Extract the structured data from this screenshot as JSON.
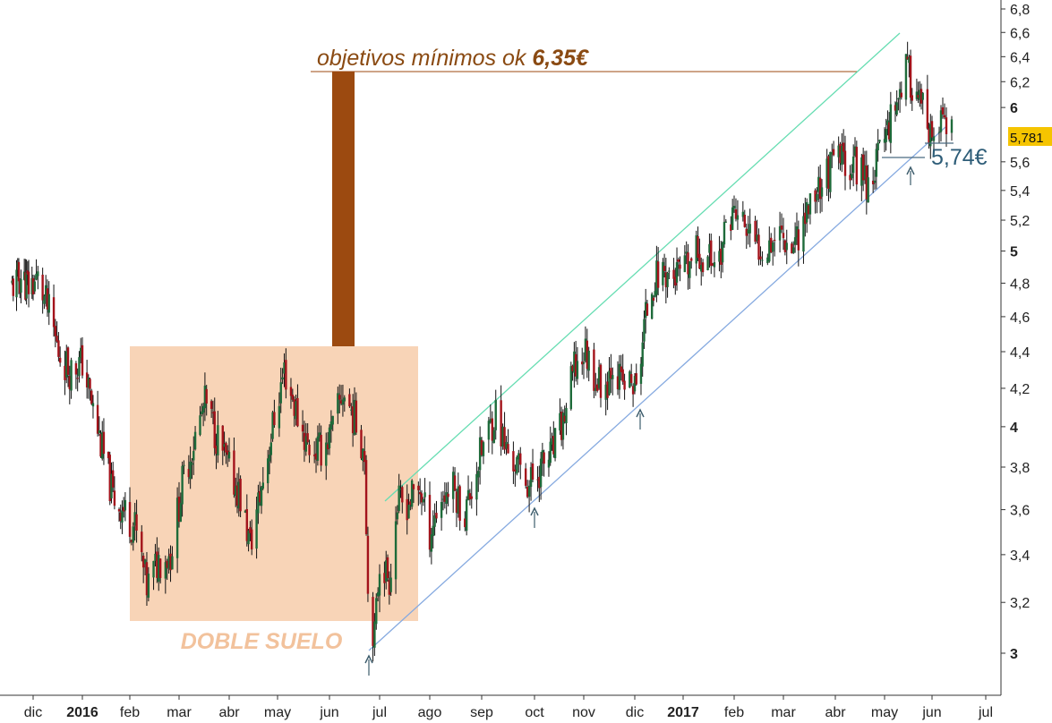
{
  "chart_data": {
    "type": "candlestick",
    "title": "",
    "xlabel": "",
    "ylabel": "",
    "ylim": [
      2.83,
      6.9
    ],
    "y_scale": "log",
    "grid": false,
    "y_ticks": [
      {
        "label": "6,8",
        "value": 6.8,
        "bold": false
      },
      {
        "label": "6,6",
        "value": 6.6,
        "bold": false
      },
      {
        "label": "6,4",
        "value": 6.4,
        "bold": false
      },
      {
        "label": "6,2",
        "value": 6.2,
        "bold": false
      },
      {
        "label": "6",
        "value": 6.0,
        "bold": true
      },
      {
        "label": "5,6",
        "value": 5.6,
        "bold": false
      },
      {
        "label": "5,4",
        "value": 5.4,
        "bold": false
      },
      {
        "label": "5,2",
        "value": 5.2,
        "bold": false
      },
      {
        "label": "5",
        "value": 5.0,
        "bold": true
      },
      {
        "label": "4,8",
        "value": 4.8,
        "bold": false
      },
      {
        "label": "4,6",
        "value": 4.6,
        "bold": false
      },
      {
        "label": "4,4",
        "value": 4.4,
        "bold": false
      },
      {
        "label": "4,2",
        "value": 4.2,
        "bold": false
      },
      {
        "label": "4",
        "value": 4.0,
        "bold": true
      },
      {
        "label": "3,8",
        "value": 3.8,
        "bold": false
      },
      {
        "label": "3,6",
        "value": 3.6,
        "bold": false
      },
      {
        "label": "3,4",
        "value": 3.4,
        "bold": false
      },
      {
        "label": "3,2",
        "value": 3.2,
        "bold": false
      },
      {
        "label": "3",
        "value": 3.0,
        "bold": true
      }
    ],
    "x_ticks": [
      {
        "label": "dic",
        "date": "2015-12-01",
        "bold": false
      },
      {
        "label": "2016",
        "date": "2016-01-01",
        "bold": true
      },
      {
        "label": "feb",
        "date": "2016-02-01",
        "bold": false
      },
      {
        "label": "mar",
        "date": "2016-03-01",
        "bold": false
      },
      {
        "label": "abr",
        "date": "2016-04-01",
        "bold": false
      },
      {
        "label": "may",
        "date": "2016-05-01",
        "bold": false
      },
      {
        "label": "jun",
        "date": "2016-06-01",
        "bold": false
      },
      {
        "label": "jul",
        "date": "2016-07-01",
        "bold": false
      },
      {
        "label": "ago",
        "date": "2016-08-01",
        "bold": false
      },
      {
        "label": "sep",
        "date": "2016-09-01",
        "bold": false
      },
      {
        "label": "oct",
        "date": "2016-10-01",
        "bold": false
      },
      {
        "label": "nov",
        "date": "2016-11-01",
        "bold": false
      },
      {
        "label": "dic",
        "date": "2016-12-01",
        "bold": false
      },
      {
        "label": "2017",
        "date": "2017-01-01",
        "bold": true
      },
      {
        "label": "feb",
        "date": "2017-02-01",
        "bold": false
      },
      {
        "label": "mar",
        "date": "2017-03-01",
        "bold": false
      },
      {
        "label": "abr",
        "date": "2017-04-01",
        "bold": false
      },
      {
        "label": "may",
        "date": "2017-05-01",
        "bold": false
      },
      {
        "label": "jun",
        "date": "2017-06-01",
        "bold": false
      },
      {
        "label": "jul",
        "date": "2017-07-01",
        "bold": false
      }
    ],
    "price_path": [
      [
        "2015-11-12",
        4.78
      ],
      [
        "2015-11-20",
        4.84
      ],
      [
        "2015-11-27",
        4.78
      ],
      [
        "2015-12-04",
        4.82
      ],
      [
        "2015-12-11",
        4.62
      ],
      [
        "2015-12-17",
        4.4
      ],
      [
        "2015-12-24",
        4.3
      ],
      [
        "2016-01-01",
        4.34
      ],
      [
        "2016-01-07",
        4.12
      ],
      [
        "2016-01-14",
        3.88
      ],
      [
        "2016-01-21",
        3.66
      ],
      [
        "2016-01-28",
        3.6
      ],
      [
        "2016-02-04",
        3.52
      ],
      [
        "2016-02-11",
        3.26
      ],
      [
        "2016-02-18",
        3.38
      ],
      [
        "2016-02-25",
        3.4
      ],
      [
        "2016-03-03",
        3.72
      ],
      [
        "2016-03-10",
        3.92
      ],
      [
        "2016-03-17",
        4.12
      ],
      [
        "2016-03-24",
        3.96
      ],
      [
        "2016-03-31",
        3.8
      ],
      [
        "2016-04-07",
        3.68
      ],
      [
        "2016-04-14",
        3.44
      ],
      [
        "2016-04-21",
        3.7
      ],
      [
        "2016-04-28",
        4.0
      ],
      [
        "2016-05-05",
        4.3
      ],
      [
        "2016-05-12",
        4.08
      ],
      [
        "2016-05-19",
        3.9
      ],
      [
        "2016-05-26",
        3.88
      ],
      [
        "2016-06-02",
        3.96
      ],
      [
        "2016-06-09",
        4.18
      ],
      [
        "2016-06-16",
        4.04
      ],
      [
        "2016-06-22",
        3.88
      ],
      [
        "2016-06-24",
        3.24
      ],
      [
        "2016-06-28",
        3.06
      ],
      [
        "2016-07-01",
        3.38
      ],
      [
        "2016-07-07",
        3.3
      ],
      [
        "2016-07-12",
        3.62
      ],
      [
        "2016-07-19",
        3.64
      ],
      [
        "2016-07-26",
        3.7
      ],
      [
        "2016-08-01",
        3.5
      ],
      [
        "2016-08-08",
        3.66
      ],
      [
        "2016-08-15",
        3.7
      ],
      [
        "2016-08-22",
        3.58
      ],
      [
        "2016-08-29",
        3.8
      ],
      [
        "2016-09-05",
        3.98
      ],
      [
        "2016-09-09",
        4.08
      ],
      [
        "2016-09-14",
        3.9
      ],
      [
        "2016-09-21",
        3.8
      ],
      [
        "2016-09-28",
        3.72
      ],
      [
        "2016-10-05",
        3.8
      ],
      [
        "2016-10-12",
        3.86
      ],
      [
        "2016-10-19",
        4.02
      ],
      [
        "2016-10-26",
        4.3
      ],
      [
        "2016-11-02",
        4.4
      ],
      [
        "2016-11-09",
        4.24
      ],
      [
        "2016-11-14",
        4.22
      ],
      [
        "2016-11-18",
        4.36
      ],
      [
        "2016-11-23",
        4.22
      ],
      [
        "2016-11-30",
        4.22
      ],
      [
        "2016-12-02",
        4.18
      ],
      [
        "2016-12-07",
        4.54
      ],
      [
        "2016-12-12",
        4.8
      ],
      [
        "2016-12-19",
        4.88
      ],
      [
        "2016-12-26",
        4.84
      ],
      [
        "2017-01-02",
        4.86
      ],
      [
        "2017-01-09",
        4.98
      ],
      [
        "2017-01-16",
        4.96
      ],
      [
        "2017-01-23",
        4.96
      ],
      [
        "2017-01-30",
        5.26
      ],
      [
        "2017-02-06",
        5.18
      ],
      [
        "2017-02-13",
        5.02
      ],
      [
        "2017-02-20",
        5.06
      ],
      [
        "2017-02-27",
        5.14
      ],
      [
        "2017-03-06",
        5.04
      ],
      [
        "2017-03-13",
        5.2
      ],
      [
        "2017-03-20",
        5.4
      ],
      [
        "2017-03-27",
        5.52
      ],
      [
        "2017-04-03",
        5.62
      ],
      [
        "2017-04-10",
        5.6
      ],
      [
        "2017-04-17",
        5.56
      ],
      [
        "2017-04-21",
        5.44
      ],
      [
        "2017-04-26",
        5.6
      ],
      [
        "2017-05-02",
        5.84
      ],
      [
        "2017-05-09",
        6.08
      ],
      [
        "2017-05-15",
        6.3
      ],
      [
        "2017-05-22",
        6.1
      ],
      [
        "2017-05-26",
        5.98
      ],
      [
        "2017-05-30",
        5.7
      ],
      [
        "2017-06-02",
        5.8
      ],
      [
        "2017-06-07",
        5.9
      ],
      [
        "2017-06-12",
        5.78
      ]
    ],
    "last_price_label": "5,781",
    "annotations": {
      "target_text": "objetivos mínimos ok ",
      "target_value": "6,35€",
      "double_bottom": "DOBLE SUELO",
      "support_value": "5,74€"
    },
    "colors": {
      "bull": "#1e6b3a",
      "bear": "#a3131b",
      "double_bottom_box": "#f8d4b7",
      "double_bottom_text": "#f2c29c",
      "target_bar": "#9c4a10",
      "target_line": "#9c4a10",
      "target_text": "#8a4a12",
      "channel_upper": "#66ddb2",
      "channel_lower": "#86aae0",
      "support_line": "#4a6a80",
      "support_text": "#2e5d78",
      "last_price_bg": "#f5c400",
      "arrow": "#3c5c6c"
    }
  }
}
